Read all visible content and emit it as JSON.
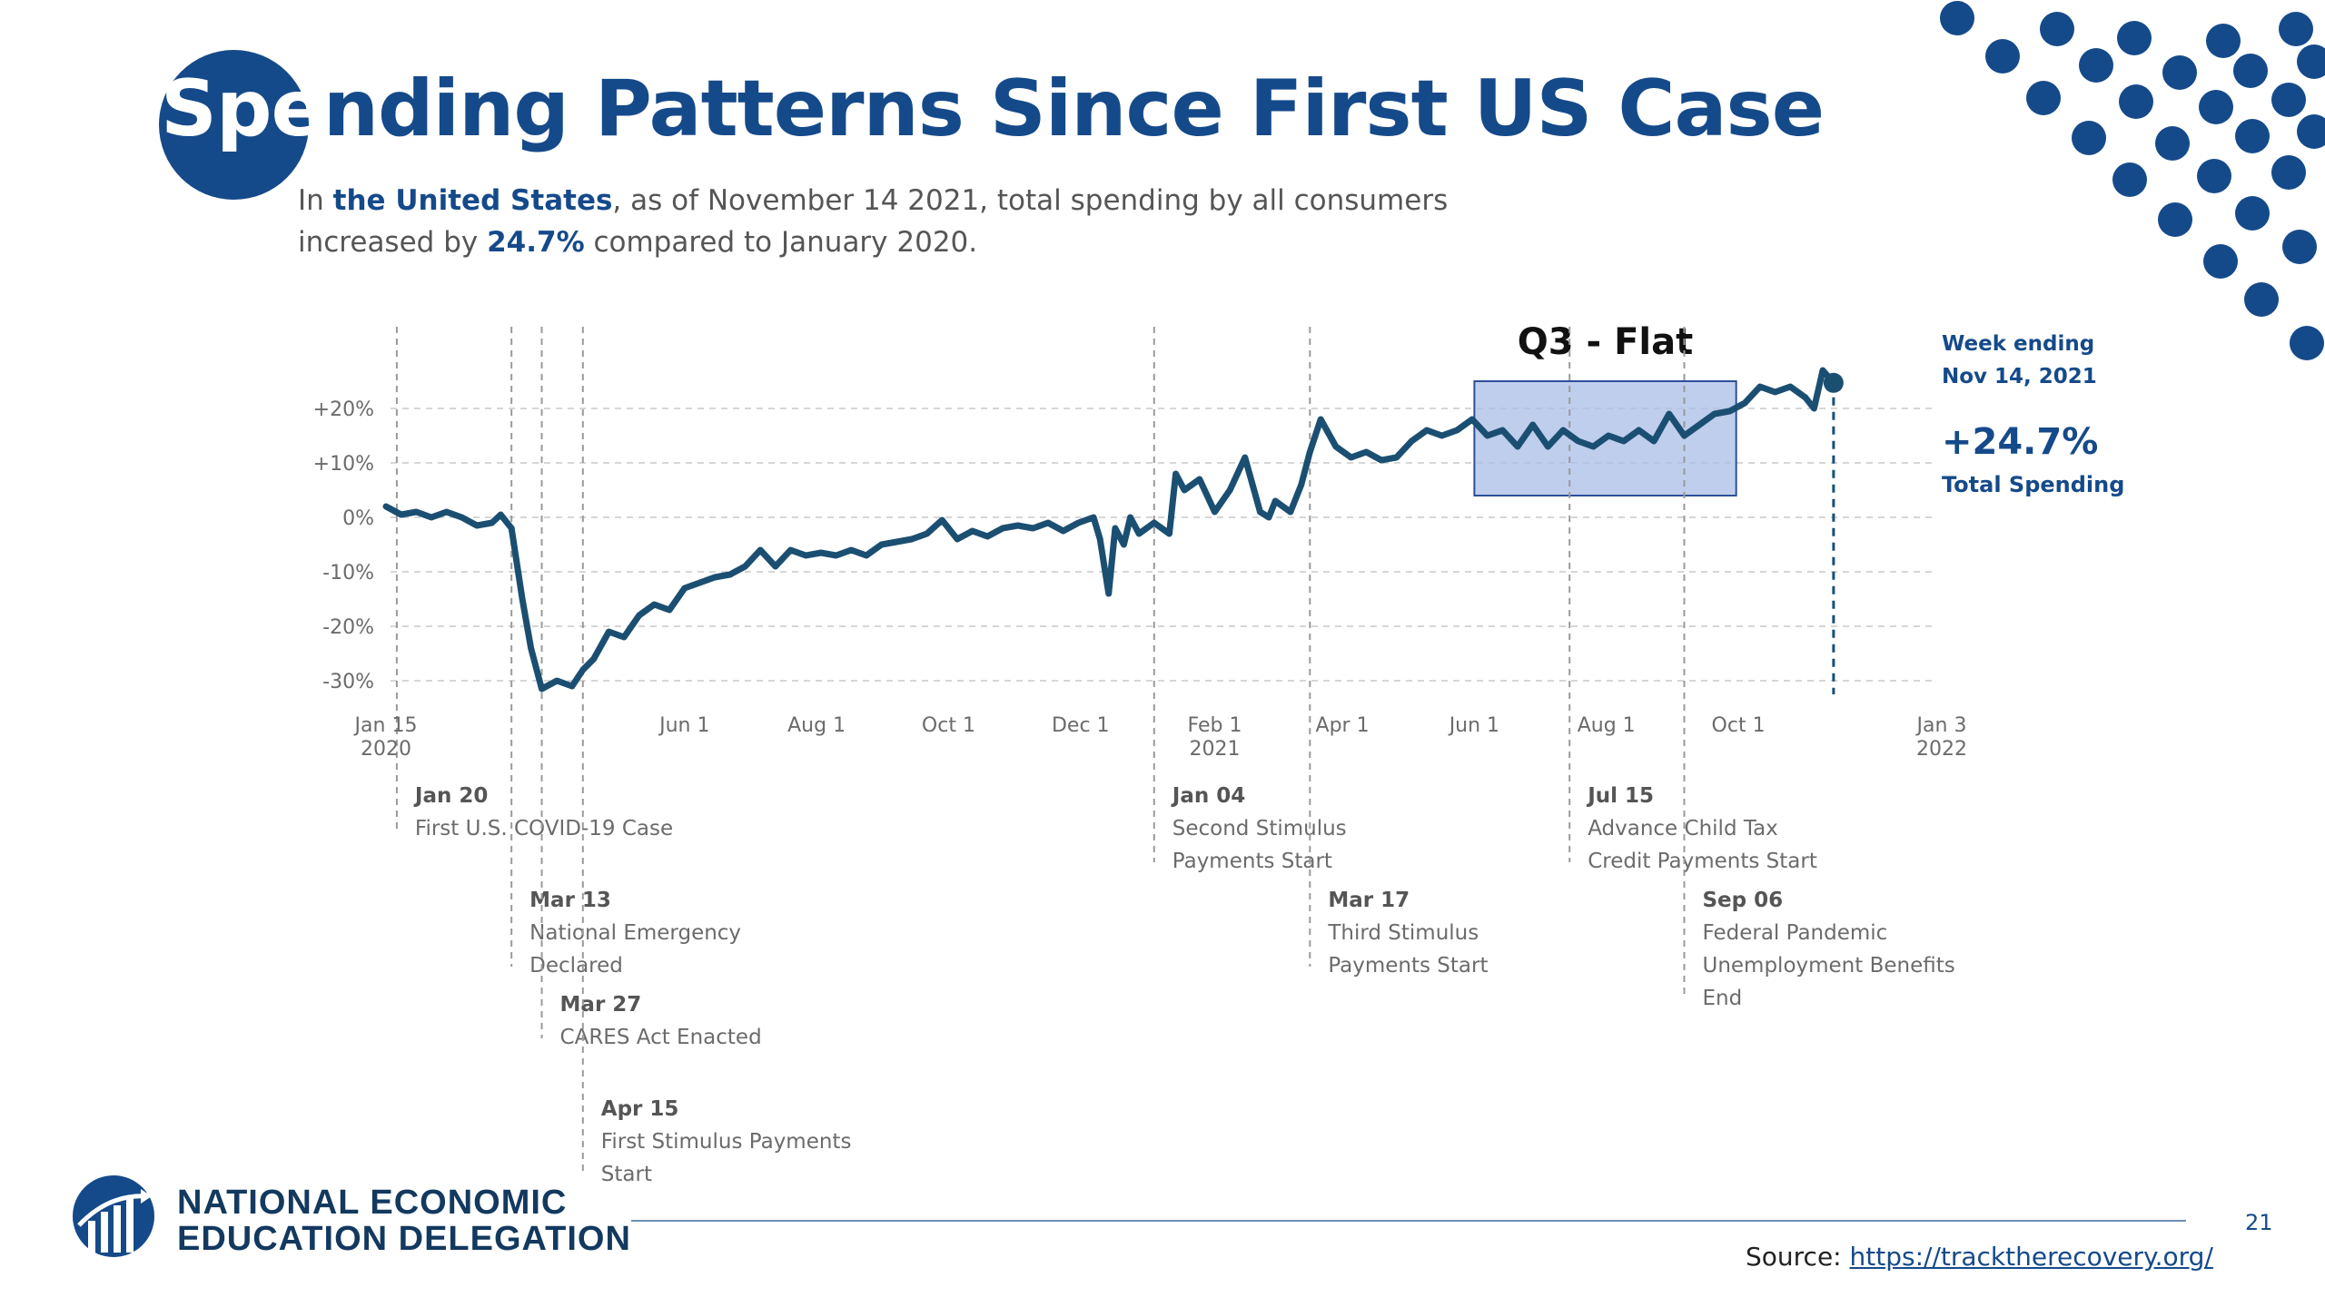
{
  "slide": {
    "title_highlight": "Spe",
    "title_rest": "nding Patterns Since First US Case",
    "subtitle": {
      "part1": "In ",
      "place": "the United States",
      "part2": ", as of November 14 2021, total spending by all consumers increased by ",
      "pct": "24.7%",
      "part3": " compared to January 2020."
    },
    "page_number": "21",
    "source_label": "Source:",
    "source_url": "https://tracktherecovery.org/",
    "org_line1": "NATIONAL ECONOMIC",
    "org_line2": "EDUCATION DELEGATION"
  },
  "colors": {
    "brand": "#154a8a",
    "line": "#1b4f72",
    "highlight_fill": "#a9bde6",
    "highlight_stroke": "#2d4f9a"
  },
  "chart_data": {
    "type": "line",
    "xlim": [
      "2020-01-15",
      "2022-01-03"
    ],
    "ylim": [
      -30,
      25
    ],
    "grid": true,
    "y_ticks": [
      {
        "value": 20,
        "label": "+20%"
      },
      {
        "value": 10,
        "label": "+10%"
      },
      {
        "value": 0,
        "label": "0%"
      },
      {
        "value": -10,
        "label": "-10%"
      },
      {
        "value": -20,
        "label": "-20%"
      },
      {
        "value": -30,
        "label": "-30%"
      }
    ],
    "x_ticks": [
      {
        "date": "2020-01-15",
        "label": "Jan 15",
        "label2": "2020"
      },
      {
        "date": "2020-06-01",
        "label": "Jun 1",
        "label2": ""
      },
      {
        "date": "2020-08-01",
        "label": "Aug 1",
        "label2": ""
      },
      {
        "date": "2020-10-01",
        "label": "Oct 1",
        "label2": ""
      },
      {
        "date": "2020-12-01",
        "label": "Dec 1",
        "label2": ""
      },
      {
        "date": "2021-02-01",
        "label": "Feb 1",
        "label2": "2021"
      },
      {
        "date": "2021-04-01",
        "label": "Apr 1",
        "label2": ""
      },
      {
        "date": "2021-06-01",
        "label": "Jun 1",
        "label2": ""
      },
      {
        "date": "2021-08-01",
        "label": "Aug 1",
        "label2": ""
      },
      {
        "date": "2021-10-01",
        "label": "Oct 1",
        "label2": ""
      },
      {
        "date": "2022-01-03",
        "label": "Jan 3",
        "label2": "2022"
      }
    ],
    "series": [
      {
        "points": [
          [
            "2020-01-15",
            2.0
          ],
          [
            "2020-01-22",
            0.5
          ],
          [
            "2020-01-29",
            1.0
          ],
          [
            "2020-02-05",
            0.0
          ],
          [
            "2020-02-12",
            1.0
          ],
          [
            "2020-02-19",
            0.0
          ],
          [
            "2020-02-26",
            -1.5
          ],
          [
            "2020-03-04",
            -1.0
          ],
          [
            "2020-03-08",
            0.5
          ],
          [
            "2020-03-13",
            -2.0
          ],
          [
            "2020-03-18",
            -15.0
          ],
          [
            "2020-03-22",
            -24.0
          ],
          [
            "2020-03-27",
            -31.5
          ],
          [
            "2020-04-03",
            -30.0
          ],
          [
            "2020-04-10",
            -31.0
          ],
          [
            "2020-04-15",
            -28.0
          ],
          [
            "2020-04-20",
            -26.0
          ],
          [
            "2020-04-27",
            -21.0
          ],
          [
            "2020-05-04",
            -22.0
          ],
          [
            "2020-05-11",
            -18.0
          ],
          [
            "2020-05-18",
            -16.0
          ],
          [
            "2020-05-25",
            -17.0
          ],
          [
            "2020-06-01",
            -13.0
          ],
          [
            "2020-06-08",
            -12.0
          ],
          [
            "2020-06-15",
            -11.0
          ],
          [
            "2020-06-22",
            -10.5
          ],
          [
            "2020-06-29",
            -9.0
          ],
          [
            "2020-07-06",
            -6.0
          ],
          [
            "2020-07-13",
            -9.0
          ],
          [
            "2020-07-20",
            -6.0
          ],
          [
            "2020-07-27",
            -7.0
          ],
          [
            "2020-08-03",
            -6.5
          ],
          [
            "2020-08-10",
            -7.0
          ],
          [
            "2020-08-17",
            -6.0
          ],
          [
            "2020-08-24",
            -7.0
          ],
          [
            "2020-08-31",
            -5.0
          ],
          [
            "2020-09-07",
            -4.5
          ],
          [
            "2020-09-14",
            -4.0
          ],
          [
            "2020-09-21",
            -3.0
          ],
          [
            "2020-09-28",
            -0.5
          ],
          [
            "2020-10-05",
            -4.0
          ],
          [
            "2020-10-12",
            -2.5
          ],
          [
            "2020-10-19",
            -3.5
          ],
          [
            "2020-10-26",
            -2.0
          ],
          [
            "2020-11-02",
            -1.5
          ],
          [
            "2020-11-09",
            -2.0
          ],
          [
            "2020-11-16",
            -1.0
          ],
          [
            "2020-11-23",
            -2.5
          ],
          [
            "2020-11-30",
            -1.0
          ],
          [
            "2020-12-07",
            0.0
          ],
          [
            "2020-12-10",
            -4.0
          ],
          [
            "2020-12-14",
            -14.0
          ],
          [
            "2020-12-17",
            -2.0
          ],
          [
            "2020-12-21",
            -5.0
          ],
          [
            "2020-12-24",
            0.0
          ],
          [
            "2020-12-28",
            -3.0
          ],
          [
            "2021-01-04",
            -1.0
          ],
          [
            "2021-01-11",
            -3.0
          ],
          [
            "2021-01-14",
            8.0
          ],
          [
            "2021-01-18",
            5.0
          ],
          [
            "2021-01-25",
            7.0
          ],
          [
            "2021-02-01",
            1.0
          ],
          [
            "2021-02-08",
            5.0
          ],
          [
            "2021-02-15",
            11.0
          ],
          [
            "2021-02-22",
            1.0
          ],
          [
            "2021-02-26",
            0.0
          ],
          [
            "2021-03-01",
            3.0
          ],
          [
            "2021-03-08",
            1.0
          ],
          [
            "2021-03-13",
            6.0
          ],
          [
            "2021-03-17",
            12.0
          ],
          [
            "2021-03-22",
            18.0
          ],
          [
            "2021-03-29",
            13.0
          ],
          [
            "2021-04-05",
            11.0
          ],
          [
            "2021-04-12",
            12.0
          ],
          [
            "2021-04-19",
            10.5
          ],
          [
            "2021-04-26",
            11.0
          ],
          [
            "2021-05-03",
            14.0
          ],
          [
            "2021-05-10",
            16.0
          ],
          [
            "2021-05-17",
            15.0
          ],
          [
            "2021-05-24",
            16.0
          ],
          [
            "2021-05-31",
            18.0
          ],
          [
            "2021-06-07",
            15.0
          ],
          [
            "2021-06-14",
            16.0
          ],
          [
            "2021-06-21",
            13.0
          ],
          [
            "2021-06-28",
            17.0
          ],
          [
            "2021-07-05",
            13.0
          ],
          [
            "2021-07-12",
            16.0
          ],
          [
            "2021-07-19",
            14.0
          ],
          [
            "2021-07-26",
            13.0
          ],
          [
            "2021-08-02",
            15.0
          ],
          [
            "2021-08-09",
            14.0
          ],
          [
            "2021-08-16",
            16.0
          ],
          [
            "2021-08-23",
            14.0
          ],
          [
            "2021-08-30",
            19.0
          ],
          [
            "2021-09-06",
            15.0
          ],
          [
            "2021-09-13",
            17.0
          ],
          [
            "2021-09-20",
            19.0
          ],
          [
            "2021-09-27",
            19.5
          ],
          [
            "2021-10-04",
            21.0
          ],
          [
            "2021-10-11",
            24.0
          ],
          [
            "2021-10-18",
            23.0
          ],
          [
            "2021-10-25",
            24.0
          ],
          [
            "2021-11-01",
            22.0
          ],
          [
            "2021-11-05",
            20.0
          ],
          [
            "2021-11-09",
            27.0
          ],
          [
            "2021-11-14",
            24.7
          ]
        ]
      }
    ],
    "highlight_box": {
      "label": "Q3 - Flat",
      "x0": "2021-06-01",
      "x1": "2021-09-30",
      "y0": 4,
      "y1": 25
    },
    "endpoint": {
      "date": "2021-11-14",
      "value": 24.7,
      "label1": "Week ending",
      "label2": "Nov 14, 2021",
      "value_label": "+24.7%",
      "value_caption": "Total Spending"
    },
    "events": [
      {
        "date": "2020-01-20",
        "label": "Jan 20",
        "lines": [
          "First U.S. COVID-19 Case"
        ],
        "row": 0
      },
      {
        "date": "2020-03-13",
        "label": "Mar 13",
        "lines": [
          "National Emergency",
          "Declared"
        ],
        "row": 1
      },
      {
        "date": "2020-03-27",
        "label": "Mar 27",
        "lines": [
          "CARES Act Enacted"
        ],
        "row": 2
      },
      {
        "date": "2020-04-15",
        "label": "Apr 15",
        "lines": [
          "First Stimulus Payments",
          "Start"
        ],
        "row": 3
      },
      {
        "date": "2021-01-04",
        "label": "Jan 04",
        "lines": [
          "Second Stimulus",
          "Payments Start"
        ],
        "row": 0
      },
      {
        "date": "2021-03-17",
        "label": "Mar 17",
        "lines": [
          "Third Stimulus",
          "Payments Start"
        ],
        "row": 1
      },
      {
        "date": "2021-07-15",
        "label": "Jul 15",
        "lines": [
          "Advance Child Tax",
          "Credit Payments Start"
        ],
        "row": 0
      },
      {
        "date": "2021-09-06",
        "label": "Sep 06",
        "lines": [
          "Federal Pandemic",
          "Unemployment Benefits",
          "End"
        ],
        "row": 1
      }
    ]
  }
}
